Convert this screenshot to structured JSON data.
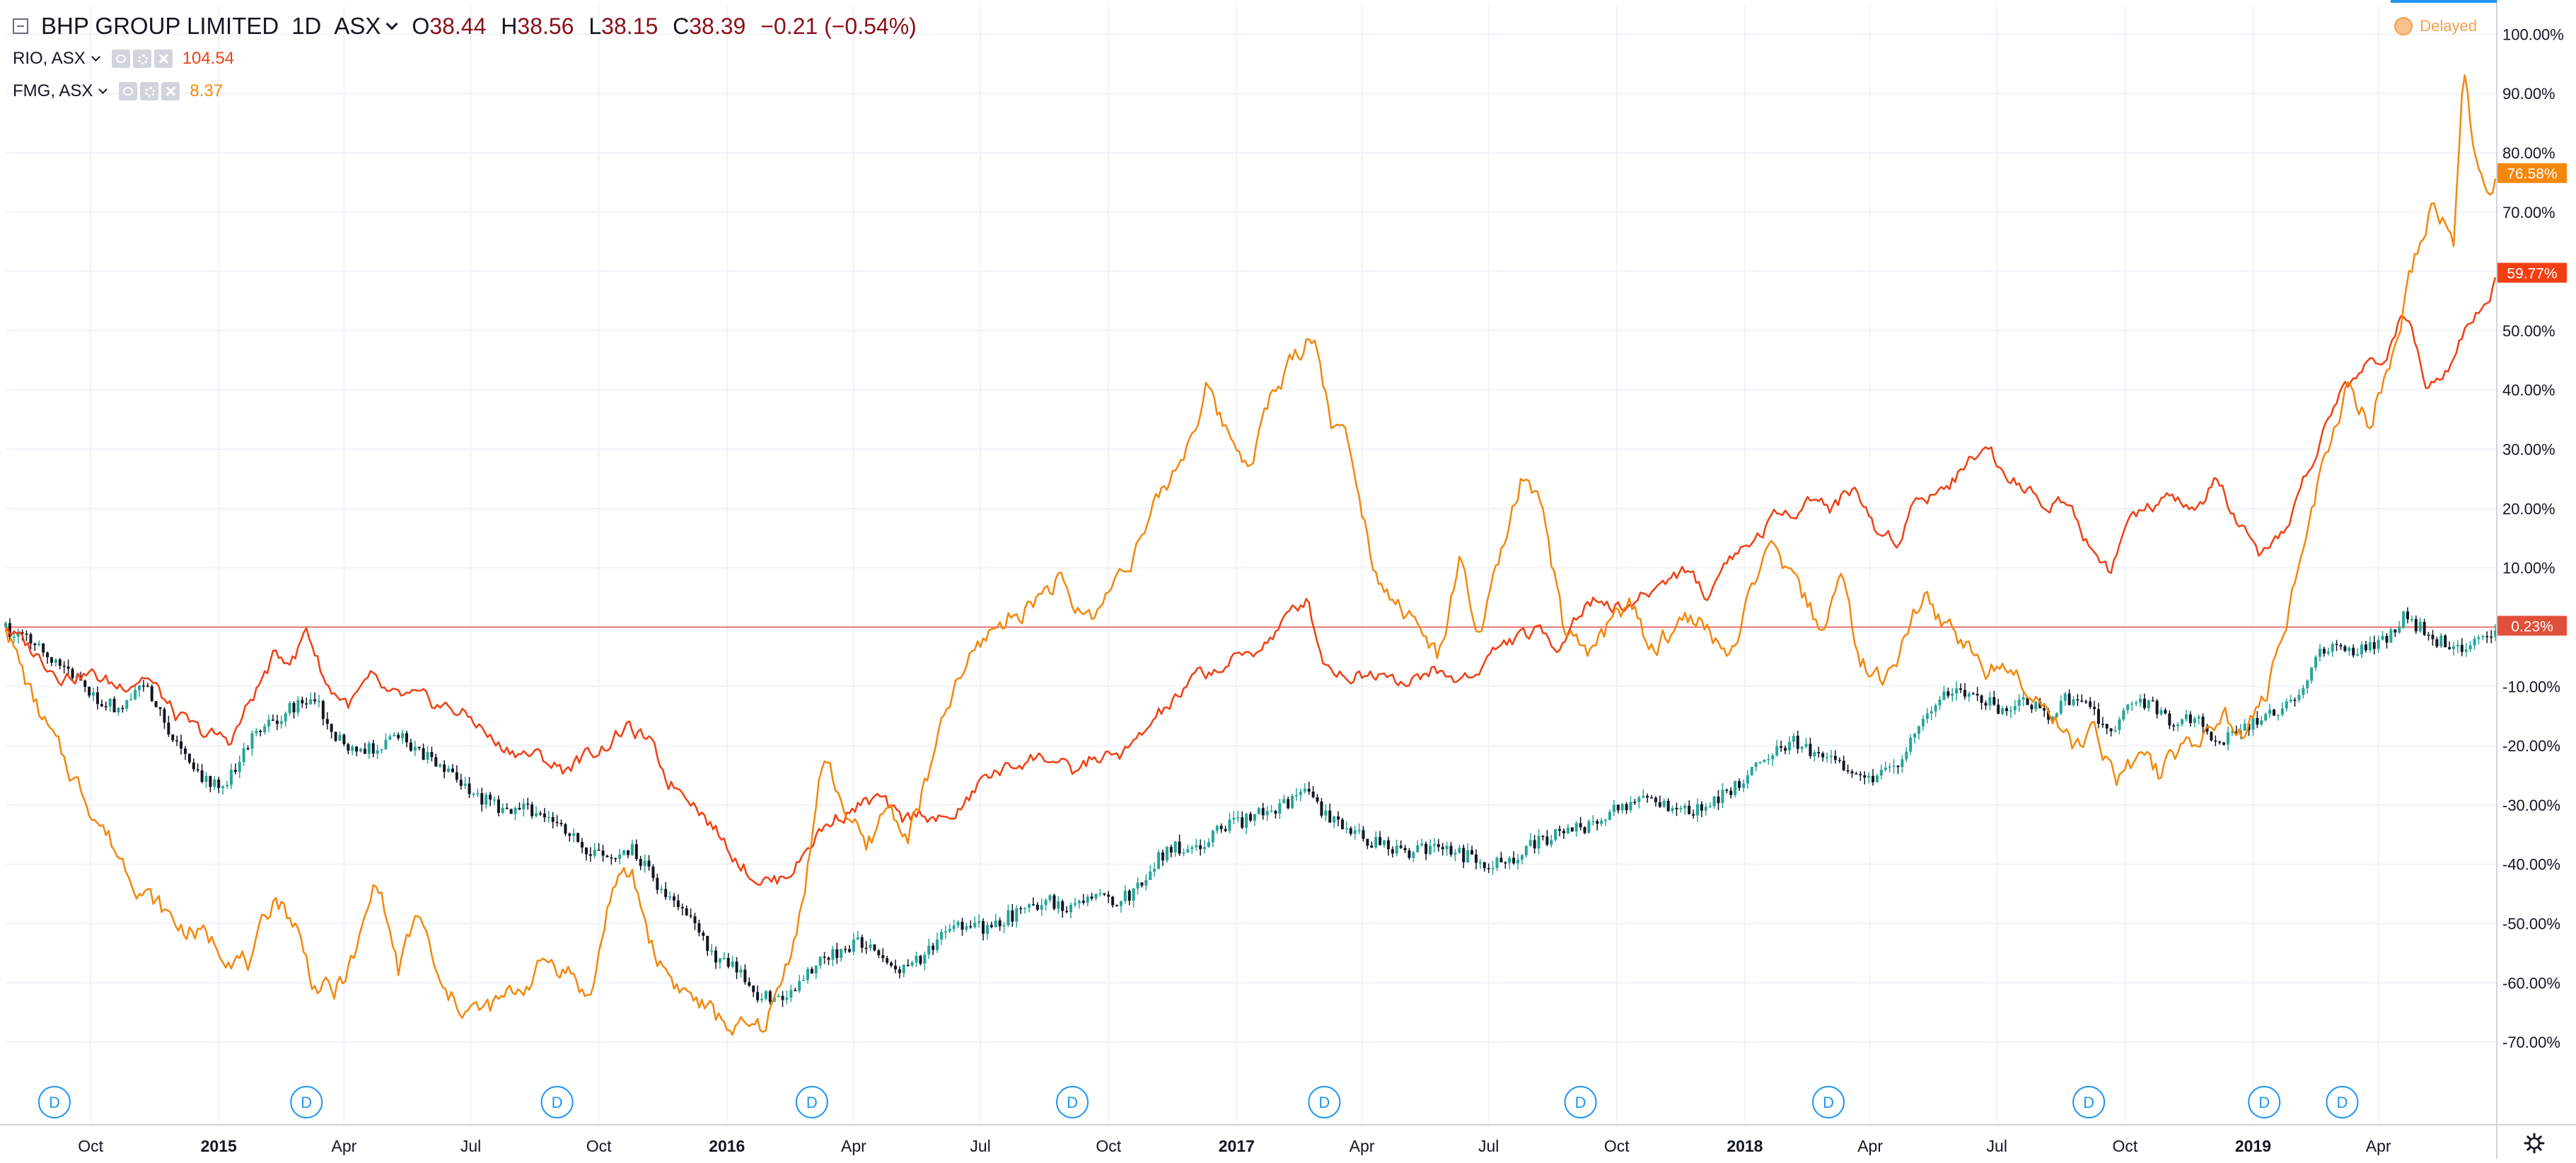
{
  "header": {
    "title": "BHP GROUP LIMITED",
    "interval": "1D",
    "exchange": "ASX",
    "ohlc": {
      "o": "38.44",
      "h": "38.56",
      "l": "38.15",
      "c": "38.39",
      "change": "−0.21 (−0.54%)"
    },
    "compare": [
      {
        "label": "RIO, ASX",
        "value": "104.54",
        "color": "#f23f12"
      },
      {
        "label": "FMG, ASX",
        "value": "8.37",
        "color": "#f5870a"
      }
    ],
    "status": "Delayed"
  },
  "colors": {
    "bhp_up": "#26a69a",
    "bhp_down": "#131722",
    "rio": "#f23f12",
    "fmg": "#f5870a",
    "zero_line": "#e57373",
    "grid": "#f0f3fa",
    "axis_text": "#131722",
    "dividend": "#2196f3"
  },
  "icons": {
    "collapse": "collapse-icon",
    "chevron": "chevron-down-icon",
    "eye": "eye-icon",
    "gear": "gear-icon",
    "close": "close-icon",
    "settings": "settings-icon",
    "status": "delayed-dot-icon"
  },
  "chart_data": {
    "type": "line",
    "title": "BHP GROUP LIMITED",
    "xlabel": "",
    "ylabel": "",
    "x_axis_type": "date",
    "x_range": [
      "2014-08-01",
      "2019-06-25"
    ],
    "y_unit": "%",
    "ylim": [
      -75,
      101
    ],
    "grid": true,
    "legend_position": "top-left",
    "y_ticks": [
      "100.00%",
      "90.00%",
      "80.00%",
      "70.00%",
      "60.00%",
      "50.00%",
      "40.00%",
      "30.00%",
      "20.00%",
      "10.00%",
      "-10.00%",
      "-20.00%",
      "-30.00%",
      "-40.00%",
      "-50.00%",
      "-60.00%",
      "-70.00%"
    ],
    "y_tick_values": [
      100,
      90,
      80,
      70,
      60,
      50,
      40,
      30,
      20,
      10,
      -10,
      -20,
      -30,
      -40,
      -50,
      -60,
      -70
    ],
    "x_ticks": [
      {
        "label": "Oct",
        "date": "2014-10-01"
      },
      {
        "label": "2015",
        "date": "2015-01-01"
      },
      {
        "label": "Apr",
        "date": "2015-04-01"
      },
      {
        "label": "Jul",
        "date": "2015-07-01"
      },
      {
        "label": "Oct",
        "date": "2015-10-01"
      },
      {
        "label": "2016",
        "date": "2016-01-01"
      },
      {
        "label": "Apr",
        "date": "2016-04-01"
      },
      {
        "label": "Jul",
        "date": "2016-07-01"
      },
      {
        "label": "Oct",
        "date": "2016-10-01"
      },
      {
        "label": "2017",
        "date": "2017-01-01"
      },
      {
        "label": "Apr",
        "date": "2017-04-01"
      },
      {
        "label": "Jul",
        "date": "2017-07-01"
      },
      {
        "label": "Oct",
        "date": "2017-10-01"
      },
      {
        "label": "2018",
        "date": "2018-01-01"
      },
      {
        "label": "Apr",
        "date": "2018-04-01"
      },
      {
        "label": "Jul",
        "date": "2018-07-01"
      },
      {
        "label": "Oct",
        "date": "2018-10-01"
      },
      {
        "label": "2019",
        "date": "2019-01-01"
      },
      {
        "label": "Apr",
        "date": "2019-04-01"
      }
    ],
    "bold_x_ticks": [
      "2015",
      "2016",
      "2017",
      "2018",
      "2019"
    ],
    "dividends": {
      "label": "D",
      "dates": [
        "2014-09-05",
        "2015-03-05",
        "2015-09-01",
        "2016-03-02",
        "2016-09-05",
        "2017-03-05",
        "2017-09-05",
        "2018-03-02",
        "2018-09-05",
        "2019-01-09",
        "2019-03-06"
      ]
    },
    "series": [
      {
        "name": "BHP GROUP LIMITED",
        "style": "candles",
        "x": [
          "2014-08-01",
          "2014-08-20",
          "2014-09-10",
          "2014-10-01",
          "2014-10-20",
          "2014-11-10",
          "2014-12-01",
          "2014-12-15",
          "2015-01-05",
          "2015-01-20",
          "2015-02-10",
          "2015-02-25",
          "2015-03-10",
          "2015-03-25",
          "2015-04-10",
          "2015-04-25",
          "2015-05-10",
          "2015-05-25",
          "2015-06-10",
          "2015-06-25",
          "2015-07-10",
          "2015-07-25",
          "2015-08-10",
          "2015-08-25",
          "2015-09-10",
          "2015-09-25",
          "2015-10-10",
          "2015-10-25",
          "2015-11-10",
          "2015-11-25",
          "2015-12-10",
          "2015-12-25",
          "2016-01-10",
          "2016-01-20",
          "2016-02-05",
          "2016-02-20",
          "2016-03-05",
          "2016-03-20",
          "2016-04-05",
          "2016-04-20",
          "2016-05-05",
          "2016-05-20",
          "2016-06-05",
          "2016-06-20",
          "2016-07-05",
          "2016-07-20",
          "2016-08-05",
          "2016-08-20",
          "2016-09-05",
          "2016-09-20",
          "2016-10-05",
          "2016-10-20",
          "2016-11-05",
          "2016-11-20",
          "2016-12-05",
          "2016-12-20",
          "2017-01-05",
          "2017-01-20",
          "2017-02-05",
          "2017-02-20",
          "2017-03-05",
          "2017-03-20",
          "2017-04-05",
          "2017-04-20",
          "2017-05-05",
          "2017-05-20",
          "2017-06-05",
          "2017-06-20",
          "2017-07-05",
          "2017-07-20",
          "2017-08-05",
          "2017-08-20",
          "2017-09-05",
          "2017-09-20",
          "2017-10-05",
          "2017-10-20",
          "2017-11-05",
          "2017-11-20",
          "2017-12-05",
          "2017-12-20",
          "2018-01-05",
          "2018-01-20",
          "2018-02-05",
          "2018-02-20",
          "2018-03-05",
          "2018-03-20",
          "2018-04-05",
          "2018-04-20",
          "2018-05-05",
          "2018-05-20",
          "2018-06-05",
          "2018-06-20",
          "2018-07-05",
          "2018-07-20",
          "2018-08-05",
          "2018-08-20",
          "2018-09-05",
          "2018-09-20",
          "2018-10-05",
          "2018-10-20",
          "2018-11-05",
          "2018-11-20",
          "2018-12-05",
          "2018-12-20",
          "2019-01-05",
          "2019-01-20",
          "2019-02-05",
          "2019-02-20",
          "2019-03-05",
          "2019-03-20",
          "2019-04-05",
          "2019-04-20",
          "2019-05-05",
          "2019-05-20",
          "2019-06-05",
          "2019-06-20",
          "2019-06-25"
        ],
        "values": [
          0,
          -3,
          -7,
          -11,
          -14,
          -10,
          -20,
          -25,
          -27,
          -20,
          -16,
          -13,
          -12,
          -18,
          -22,
          -20,
          -18,
          -21,
          -24,
          -27,
          -29,
          -31,
          -30,
          -33,
          -34,
          -38,
          -40,
          -37,
          -43,
          -47,
          -51,
          -56,
          -58,
          -62,
          -63,
          -60,
          -57,
          -55,
          -53,
          -56,
          -58,
          -56,
          -52,
          -50,
          -51,
          -49,
          -47,
          -46,
          -48,
          -45,
          -46,
          -45,
          -39,
          -37,
          -38,
          -34,
          -33,
          -31,
          -30,
          -28,
          -32,
          -34,
          -36,
          -37,
          -38,
          -37,
          -38,
          -39,
          -40,
          -39,
          -36,
          -35,
          -34,
          -32,
          -30,
          -29,
          -30,
          -31,
          -30,
          -28,
          -24,
          -21,
          -19,
          -21,
          -23,
          -25,
          -26,
          -23,
          -17,
          -12,
          -11,
          -12,
          -14,
          -12,
          -15,
          -12,
          -13,
          -18,
          -12,
          -13,
          -16,
          -15,
          -20,
          -18,
          -16,
          -14,
          -10,
          -4,
          -3,
          -4,
          -2,
          2,
          -1,
          -3,
          -4,
          -1,
          0.23
        ]
      },
      {
        "name": "RIO, ASX",
        "style": "line",
        "x": [
          "2014-08-01",
          "2014-08-20",
          "2014-09-10",
          "2014-10-01",
          "2014-10-20",
          "2014-11-10",
          "2014-12-01",
          "2014-12-20",
          "2015-01-10",
          "2015-01-25",
          "2015-02-10",
          "2015-02-25",
          "2015-03-05",
          "2015-03-20",
          "2015-04-05",
          "2015-04-20",
          "2015-05-05",
          "2015-05-20",
          "2015-06-05",
          "2015-06-20",
          "2015-07-05",
          "2015-07-20",
          "2015-08-05",
          "2015-08-20",
          "2015-09-05",
          "2015-09-20",
          "2015-10-05",
          "2015-10-20",
          "2015-11-05",
          "2015-11-20",
          "2015-12-05",
          "2015-12-20",
          "2016-01-05",
          "2016-01-20",
          "2016-02-05",
          "2016-02-20",
          "2016-03-05",
          "2016-03-20",
          "2016-04-05",
          "2016-04-20",
          "2016-05-05",
          "2016-05-20",
          "2016-06-05",
          "2016-06-20",
          "2016-07-05",
          "2016-07-20",
          "2016-08-05",
          "2016-08-20",
          "2016-09-05",
          "2016-09-20",
          "2016-10-05",
          "2016-10-20",
          "2016-11-05",
          "2016-11-20",
          "2016-12-05",
          "2016-12-20",
          "2017-01-05",
          "2017-01-20",
          "2017-02-05",
          "2017-02-20",
          "2017-03-05",
          "2017-03-20",
          "2017-04-05",
          "2017-04-20",
          "2017-05-05",
          "2017-05-20",
          "2017-06-05",
          "2017-06-20",
          "2017-07-05",
          "2017-07-20",
          "2017-08-05",
          "2017-08-20",
          "2017-09-05",
          "2017-09-20",
          "2017-10-05",
          "2017-10-20",
          "2017-11-05",
          "2017-11-20",
          "2017-12-05",
          "2017-12-20",
          "2018-01-05",
          "2018-01-20",
          "2018-02-05",
          "2018-02-20",
          "2018-03-05",
          "2018-03-20",
          "2018-04-05",
          "2018-04-20",
          "2018-05-05",
          "2018-05-20",
          "2018-06-05",
          "2018-06-20",
          "2018-07-05",
          "2018-07-20",
          "2018-08-05",
          "2018-08-20",
          "2018-09-05",
          "2018-09-20",
          "2018-10-05",
          "2018-10-20",
          "2018-11-05",
          "2018-11-20",
          "2018-12-05",
          "2018-12-20",
          "2019-01-05",
          "2019-01-20",
          "2019-02-05",
          "2019-02-20",
          "2019-03-05",
          "2019-03-20",
          "2019-04-05",
          "2019-04-20",
          "2019-05-05",
          "2019-05-20",
          "2019-06-05",
          "2019-06-20",
          "2019-06-25"
        ],
        "values": [
          0,
          -4,
          -8,
          -8,
          -10,
          -8,
          -15,
          -18,
          -19,
          -12,
          -5,
          -5,
          0,
          -10,
          -13,
          -9,
          -12,
          -12,
          -13,
          -14,
          -16,
          -20,
          -21,
          -22,
          -24,
          -22,
          -20,
          -17,
          -19,
          -26,
          -28,
          -33,
          -38,
          -42,
          -43,
          -40,
          -35,
          -32,
          -30,
          -29,
          -33,
          -31,
          -33,
          -30,
          -25,
          -24,
          -22,
          -22,
          -25,
          -22,
          -22,
          -20,
          -15,
          -12,
          -8,
          -7,
          -5,
          -3,
          1,
          5,
          -6,
          -8,
          -8,
          -7,
          -10,
          -7,
          -9,
          -8,
          -4,
          -2,
          -1,
          -3,
          3,
          5,
          3,
          5,
          8,
          10,
          5,
          12,
          14,
          18,
          20,
          22,
          20,
          24,
          16,
          15,
          22,
          23,
          26,
          31,
          27,
          24,
          20,
          22,
          14,
          10,
          18,
          20,
          22,
          19,
          25,
          18,
          11,
          14,
          24,
          32,
          40,
          43,
          46,
          53,
          42,
          44,
          52,
          56,
          59.77
        ]
      },
      {
        "name": "FMG, ASX",
        "style": "line",
        "x": [
          "2014-08-01",
          "2014-08-20",
          "2014-09-10",
          "2014-10-01",
          "2014-10-20",
          "2014-11-10",
          "2014-12-01",
          "2014-12-20",
          "2015-01-10",
          "2015-01-25",
          "2015-02-10",
          "2015-02-25",
          "2015-03-10",
          "2015-03-25",
          "2015-04-10",
          "2015-04-25",
          "2015-05-10",
          "2015-05-25",
          "2015-06-10",
          "2015-06-25",
          "2015-07-10",
          "2015-07-25",
          "2015-08-10",
          "2015-08-25",
          "2015-09-10",
          "2015-09-25",
          "2015-10-10",
          "2015-10-25",
          "2015-11-10",
          "2015-11-25",
          "2015-12-10",
          "2015-12-25",
          "2016-01-10",
          "2016-01-25",
          "2016-02-10",
          "2016-02-25",
          "2016-03-10",
          "2016-03-25",
          "2016-04-10",
          "2016-04-25",
          "2016-05-10",
          "2016-05-25",
          "2016-06-10",
          "2016-06-25",
          "2016-07-10",
          "2016-07-25",
          "2016-08-10",
          "2016-08-25",
          "2016-09-10",
          "2016-09-25",
          "2016-10-10",
          "2016-10-25",
          "2016-11-10",
          "2016-11-25",
          "2016-12-10",
          "2016-12-25",
          "2017-01-10",
          "2017-01-25",
          "2017-02-10",
          "2017-02-25",
          "2017-03-10",
          "2017-03-25",
          "2017-04-10",
          "2017-04-25",
          "2017-05-10",
          "2017-05-25",
          "2017-06-10",
          "2017-06-25",
          "2017-07-10",
          "2017-07-25",
          "2017-08-10",
          "2017-08-25",
          "2017-09-10",
          "2017-09-25",
          "2017-10-10",
          "2017-10-25",
          "2017-11-10",
          "2017-11-25",
          "2017-12-10",
          "2017-12-25",
          "2018-01-10",
          "2018-01-25",
          "2018-02-10",
          "2018-02-25",
          "2018-03-10",
          "2018-03-25",
          "2018-04-10",
          "2018-04-25",
          "2018-05-10",
          "2018-05-25",
          "2018-06-10",
          "2018-06-25",
          "2018-07-10",
          "2018-07-25",
          "2018-08-10",
          "2018-08-25",
          "2018-09-10",
          "2018-09-25",
          "2018-10-10",
          "2018-10-25",
          "2018-11-10",
          "2018-11-25",
          "2018-12-10",
          "2018-12-25",
          "2019-01-10",
          "2019-01-25",
          "2019-02-10",
          "2019-02-25",
          "2019-03-10",
          "2019-03-25",
          "2019-04-10",
          "2019-04-25",
          "2019-05-10",
          "2019-05-25",
          "2019-06-01",
          "2019-06-10",
          "2019-06-20",
          "2019-06-25"
        ],
        "values": [
          0,
          -12,
          -22,
          -30,
          -38,
          -45,
          -50,
          -52,
          -55,
          -57,
          -45,
          -50,
          -60,
          -62,
          -55,
          -42,
          -58,
          -48,
          -62,
          -64,
          -65,
          -63,
          -60,
          -56,
          -58,
          -63,
          -44,
          -42,
          -55,
          -60,
          -63,
          -66,
          -68,
          -68,
          -60,
          -45,
          -22,
          -30,
          -38,
          -30,
          -35,
          -25,
          -12,
          -5,
          0,
          2,
          5,
          8,
          2,
          3,
          10,
          15,
          23,
          30,
          40,
          33,
          28,
          38,
          45,
          50,
          35,
          30,
          10,
          5,
          0,
          -5,
          10,
          -2,
          12,
          25,
          18,
          -2,
          -5,
          0,
          5,
          -5,
          0,
          2,
          -2,
          -5,
          10,
          12,
          5,
          0,
          8,
          -5,
          -10,
          -2,
          5,
          0,
          -3,
          -8,
          -5,
          -10,
          -15,
          -20,
          -18,
          -25,
          -22,
          -25,
          -20,
          -18,
          -15,
          -18,
          -12,
          0,
          20,
          30,
          40,
          35,
          45,
          60,
          72,
          65,
          95,
          78,
          72,
          76.58
        ]
      }
    ]
  },
  "price_labels": {
    "fmg": "76.58%",
    "rio": "59.77%",
    "bhp": "0.23%"
  }
}
